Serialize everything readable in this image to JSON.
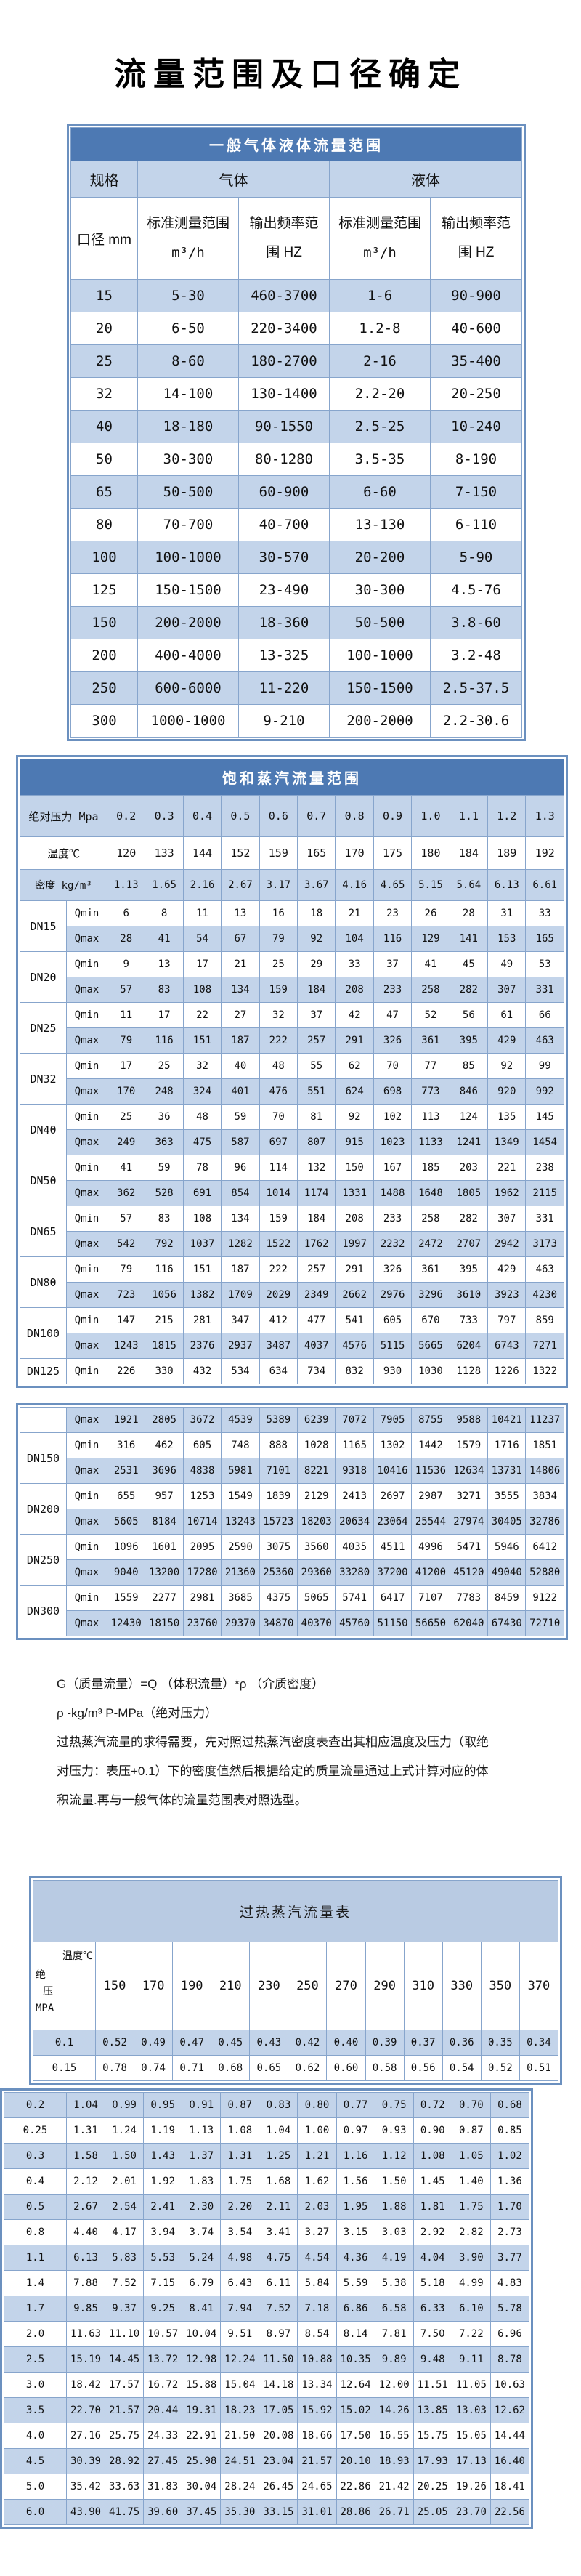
{
  "page_title": "流量范围及口径确定",
  "colors": {
    "title_bar_blue": "#4d79b3",
    "band_blue": "#c3d4ea",
    "table3_title_blue": "#b9cbe3",
    "frame_blue": "#6b90bf",
    "grid_blue": "#87a5cc"
  },
  "table1": {
    "title": "一般气体液体流量范围",
    "h_spec": "规格",
    "h_gas": "气体",
    "h_liquid": "液体",
    "h_diameter": "口径 mm",
    "h_range": "标准测量范围",
    "h_range_unit": "m³/h",
    "h_freq": "输出频率范",
    "h_freq2": "围 HZ",
    "rows": [
      [
        "15",
        "5-30",
        "460-3700",
        "1-6",
        "90-900"
      ],
      [
        "20",
        "6-50",
        "220-3400",
        "1.2-8",
        "40-600"
      ],
      [
        "25",
        "8-60",
        "180-2700",
        "2-16",
        "35-400"
      ],
      [
        "32",
        "14-100",
        "130-1400",
        "2.2-20",
        "20-250"
      ],
      [
        "40",
        "18-180",
        "90-1550",
        "2.5-25",
        "10-240"
      ],
      [
        "50",
        "30-300",
        "80-1280",
        "3.5-35",
        "8-190"
      ],
      [
        "65",
        "50-500",
        "60-900",
        "6-60",
        "7-150"
      ],
      [
        "80",
        "70-700",
        "40-700",
        "13-130",
        "6-110"
      ],
      [
        "100",
        "100-1000",
        "30-570",
        "20-200",
        "5-90"
      ],
      [
        "125",
        "150-1500",
        "23-490",
        "30-300",
        "4.5-76"
      ],
      [
        "150",
        "200-2000",
        "18-360",
        "50-500",
        "3.8-60"
      ],
      [
        "200",
        "400-4000",
        "13-325",
        "100-1000",
        "3.2-48"
      ],
      [
        "250",
        "600-6000",
        "11-220",
        "150-1500",
        "2.5-37.5"
      ],
      [
        "300",
        "1000-1000",
        "9-210",
        "200-2000",
        "2.2-30.6"
      ]
    ]
  },
  "table2": {
    "title": "饱和蒸汽流量范围",
    "pressure_label": "绝对压力 Mpa",
    "temp_label": "温度℃",
    "density_label": "密度 kg/m³",
    "qmin_label": "Qmin",
    "qmax_label": "Qmax",
    "pressures": [
      "0.2",
      "0.3",
      "0.4",
      "0.5",
      "0.6",
      "0.7",
      "0.8",
      "0.9",
      "1.0",
      "1.1",
      "1.2",
      "1.3"
    ],
    "temps": [
      "120",
      "133",
      "144",
      "152",
      "159",
      "165",
      "170",
      "175",
      "180",
      "184",
      "189",
      "192"
    ],
    "densities": [
      "1.13",
      "1.65",
      "2.16",
      "2.67",
      "3.17",
      "3.67",
      "4.16",
      "4.65",
      "5.15",
      "5.64",
      "6.13",
      "6.61"
    ],
    "block1": [
      {
        "dn": "DN15",
        "qmin": [
          "6",
          "8",
          "11",
          "13",
          "16",
          "18",
          "21",
          "23",
          "26",
          "28",
          "31",
          "33"
        ],
        "qmax": [
          "28",
          "41",
          "54",
          "67",
          "79",
          "92",
          "104",
          "116",
          "129",
          "141",
          "153",
          "165"
        ]
      },
      {
        "dn": "DN20",
        "qmin": [
          "9",
          "13",
          "17",
          "21",
          "25",
          "29",
          "33",
          "37",
          "41",
          "45",
          "49",
          "53"
        ],
        "qmax": [
          "57",
          "83",
          "108",
          "134",
          "159",
          "184",
          "208",
          "233",
          "258",
          "282",
          "307",
          "331"
        ]
      },
      {
        "dn": "DN25",
        "qmin": [
          "11",
          "17",
          "22",
          "27",
          "32",
          "37",
          "42",
          "47",
          "52",
          "56",
          "61",
          "66"
        ],
        "qmax": [
          "79",
          "116",
          "151",
          "187",
          "222",
          "257",
          "291",
          "326",
          "361",
          "395",
          "429",
          "463"
        ]
      },
      {
        "dn": "DN32",
        "qmin": [
          "17",
          "25",
          "32",
          "40",
          "48",
          "55",
          "62",
          "70",
          "77",
          "85",
          "92",
          "99"
        ],
        "qmax": [
          "170",
          "248",
          "324",
          "401",
          "476",
          "551",
          "624",
          "698",
          "773",
          "846",
          "920",
          "992"
        ]
      },
      {
        "dn": "DN40",
        "qmin": [
          "25",
          "36",
          "48",
          "59",
          "70",
          "81",
          "92",
          "102",
          "113",
          "124",
          "135",
          "145"
        ],
        "qmax": [
          "249",
          "363",
          "475",
          "587",
          "697",
          "807",
          "915",
          "1023",
          "1133",
          "1241",
          "1349",
          "1454"
        ]
      },
      {
        "dn": "DN50",
        "qmin": [
          "41",
          "59",
          "78",
          "96",
          "114",
          "132",
          "150",
          "167",
          "185",
          "203",
          "221",
          "238"
        ],
        "qmax": [
          "362",
          "528",
          "691",
          "854",
          "1014",
          "1174",
          "1331",
          "1488",
          "1648",
          "1805",
          "1962",
          "2115"
        ]
      },
      {
        "dn": "DN65",
        "qmin": [
          "57",
          "83",
          "108",
          "134",
          "159",
          "184",
          "208",
          "233",
          "258",
          "282",
          "307",
          "331"
        ],
        "qmax": [
          "542",
          "792",
          "1037",
          "1282",
          "1522",
          "1762",
          "1997",
          "2232",
          "2472",
          "2707",
          "2942",
          "3173"
        ]
      },
      {
        "dn": "DN80",
        "qmin": [
          "79",
          "116",
          "151",
          "187",
          "222",
          "257",
          "291",
          "326",
          "361",
          "395",
          "429",
          "463"
        ],
        "qmax": [
          "723",
          "1056",
          "1382",
          "1709",
          "2029",
          "2349",
          "2662",
          "2976",
          "3296",
          "3610",
          "3923",
          "4230"
        ]
      },
      {
        "dn": "DN100",
        "qmin": [
          "147",
          "215",
          "281",
          "347",
          "412",
          "477",
          "541",
          "605",
          "670",
          "733",
          "797",
          "859"
        ],
        "qmax": [
          "1243",
          "1815",
          "2376",
          "2937",
          "3487",
          "4037",
          "4576",
          "5115",
          "5665",
          "6204",
          "6743",
          "7271"
        ]
      },
      {
        "dn": "DN125",
        "qmin": [
          "226",
          "330",
          "432",
          "534",
          "634",
          "734",
          "832",
          "930",
          "1030",
          "1128",
          "1226",
          "1322"
        ]
      }
    ],
    "continued": {
      "qmax_first": [
        "1921",
        "2805",
        "3672",
        "4539",
        "5389",
        "6239",
        "7072",
        "7905",
        "8755",
        "9588",
        "10421",
        "11237"
      ],
      "blocks": [
        {
          "dn": "DN150",
          "qmin": [
            "316",
            "462",
            "605",
            "748",
            "888",
            "1028",
            "1165",
            "1302",
            "1442",
            "1579",
            "1716",
            "1851"
          ],
          "qmax": [
            "2531",
            "3696",
            "4838",
            "5981",
            "7101",
            "8221",
            "9318",
            "10416",
            "11536",
            "12634",
            "13731",
            "14806"
          ]
        },
        {
          "dn": "DN200",
          "qmin": [
            "655",
            "957",
            "1253",
            "1549",
            "1839",
            "2129",
            "2413",
            "2697",
            "2987",
            "3271",
            "3555",
            "3834"
          ],
          "qmax": [
            "5605",
            "8184",
            "10714",
            "13243",
            "15723",
            "18203",
            "20634",
            "23064",
            "25544",
            "27974",
            "30405",
            "32786"
          ]
        },
        {
          "dn": "DN250",
          "qmin": [
            "1096",
            "1601",
            "2095",
            "2590",
            "3075",
            "3560",
            "4035",
            "4511",
            "4996",
            "5471",
            "5946",
            "6412"
          ],
          "qmax": [
            "9040",
            "13200",
            "17280",
            "21360",
            "25360",
            "29360",
            "33280",
            "37200",
            "41200",
            "45120",
            "49040",
            "52880"
          ]
        },
        {
          "dn": "DN300",
          "qmin": [
            "1559",
            "2277",
            "2981",
            "3685",
            "4375",
            "5065",
            "5741",
            "6417",
            "7107",
            "7783",
            "8459",
            "9122"
          ],
          "qmax": [
            "12430",
            "18150",
            "23760",
            "29370",
            "34870",
            "40370",
            "45760",
            "51150",
            "56650",
            "62040",
            "67430",
            "72710"
          ]
        }
      ]
    }
  },
  "notes": [
    "G（质量流量）=Q （体积流量）*ρ （介质密度）",
    "ρ -kg/m³ P-MPa（绝对压力）",
    "过热蒸汽流量的求得需要，先对照过热蒸汽密度表查出其相应温度及压力（取绝",
    "对压力：表压+0.1）下的密度值然后根据给定的质量流量通过上式计算对应的体",
    "积流量.再与一般气体的流量范围表对照选型。"
  ],
  "table3": {
    "title": "过热蒸汽流量表",
    "corner_top": "温度℃",
    "corner_chars": [
      "绝",
      "压",
      "MPA"
    ],
    "temps": [
      "150",
      "170",
      "190",
      "210",
      "230",
      "250",
      "270",
      "290",
      "310",
      "330",
      "350",
      "370"
    ],
    "blockA": [
      {
        "p": "0.1",
        "v": [
          "0.52",
          "0.49",
          "0.47",
          "0.45",
          "0.43",
          "0.42",
          "0.40",
          "0.39",
          "0.37",
          "0.36",
          "0.35",
          "0.34"
        ]
      },
      {
        "p": "0.15",
        "v": [
          "0.78",
          "0.74",
          "0.71",
          "0.68",
          "0.65",
          "0.62",
          "0.60",
          "0.58",
          "0.56",
          "0.54",
          "0.52",
          "0.51"
        ]
      }
    ],
    "blockB": [
      {
        "p": "0.2",
        "v": [
          "1.04",
          "0.99",
          "0.95",
          "0.91",
          "0.87",
          "0.83",
          "0.80",
          "0.77",
          "0.75",
          "0.72",
          "0.70",
          "0.68"
        ]
      },
      {
        "p": "0.25",
        "v": [
          "1.31",
          "1.24",
          "1.19",
          "1.13",
          "1.08",
          "1.04",
          "1.00",
          "0.97",
          "0.93",
          "0.90",
          "0.87",
          "0.85"
        ]
      },
      {
        "p": "0.3",
        "v": [
          "1.58",
          "1.50",
          "1.43",
          "1.37",
          "1.31",
          "1.25",
          "1.21",
          "1.16",
          "1.12",
          "1.08",
          "1.05",
          "1.02"
        ]
      },
      {
        "p": "0.4",
        "v": [
          "2.12",
          "2.01",
          "1.92",
          "1.83",
          "1.75",
          "1.68",
          "1.62",
          "1.56",
          "1.50",
          "1.45",
          "1.40",
          "1.36"
        ]
      },
      {
        "p": "0.5",
        "v": [
          "2.67",
          "2.54",
          "2.41",
          "2.30",
          "2.20",
          "2.11",
          "2.03",
          "1.95",
          "1.88",
          "1.81",
          "1.75",
          "1.70"
        ]
      },
      {
        "p": "0.8",
        "v": [
          "4.40",
          "4.17",
          "3.94",
          "3.74",
          "3.54",
          "3.41",
          "3.27",
          "3.15",
          "3.03",
          "2.92",
          "2.82",
          "2.73"
        ]
      },
      {
        "p": "1.1",
        "v": [
          "6.13",
          "5.83",
          "5.53",
          "5.24",
          "4.98",
          "4.75",
          "4.54",
          "4.36",
          "4.19",
          "4.04",
          "3.90",
          "3.77"
        ]
      },
      {
        "p": "1.4",
        "v": [
          "7.88",
          "7.52",
          "7.15",
          "6.79",
          "6.43",
          "6.11",
          "5.84",
          "5.59",
          "5.38",
          "5.18",
          "4.99",
          "4.83"
        ]
      },
      {
        "p": "1.7",
        "v": [
          "9.85",
          "9.37",
          "9.25",
          "8.41",
          "7.94",
          "7.52",
          "7.18",
          "6.86",
          "6.58",
          "6.33",
          "6.10",
          "5.78"
        ]
      },
      {
        "p": "2.0",
        "v": [
          "11.63",
          "11.10",
          "10.57",
          "10.04",
          "9.51",
          "8.97",
          "8.54",
          "8.14",
          "7.81",
          "7.50",
          "7.22",
          "6.96"
        ]
      },
      {
        "p": "2.5",
        "v": [
          "15.19",
          "14.45",
          "13.72",
          "12.98",
          "12.24",
          "11.50",
          "10.88",
          "10.35",
          "9.89",
          "9.48",
          "9.11",
          "8.78"
        ]
      },
      {
        "p": "3.0",
        "v": [
          "18.42",
          "17.57",
          "16.72",
          "15.88",
          "15.04",
          "14.18",
          "13.34",
          "12.64",
          "12.00",
          "11.51",
          "11.05",
          "10.63"
        ]
      },
      {
        "p": "3.5",
        "v": [
          "22.70",
          "21.57",
          "20.44",
          "19.31",
          "18.23",
          "17.05",
          "15.92",
          "15.02",
          "14.26",
          "13.85",
          "13.03",
          "12.62"
        ]
      },
      {
        "p": "4.0",
        "v": [
          "27.16",
          "25.75",
          "24.33",
          "22.91",
          "21.50",
          "20.08",
          "18.66",
          "17.50",
          "16.55",
          "15.75",
          "15.05",
          "14.44"
        ]
      },
      {
        "p": "4.5",
        "v": [
          "30.39",
          "28.92",
          "27.45",
          "25.98",
          "24.51",
          "23.04",
          "21.57",
          "20.10",
          "18.93",
          "17.93",
          "17.13",
          "16.40"
        ]
      },
      {
        "p": "5.0",
        "v": [
          "35.42",
          "33.63",
          "31.83",
          "30.04",
          "28.24",
          "26.45",
          "24.65",
          "22.86",
          "21.42",
          "20.25",
          "19.26",
          "18.41"
        ]
      },
      {
        "p": "6.0",
        "v": [
          "43.90",
          "41.75",
          "39.60",
          "37.45",
          "35.30",
          "33.15",
          "31.01",
          "28.86",
          "26.71",
          "25.05",
          "23.70",
          "22.56"
        ]
      }
    ]
  }
}
